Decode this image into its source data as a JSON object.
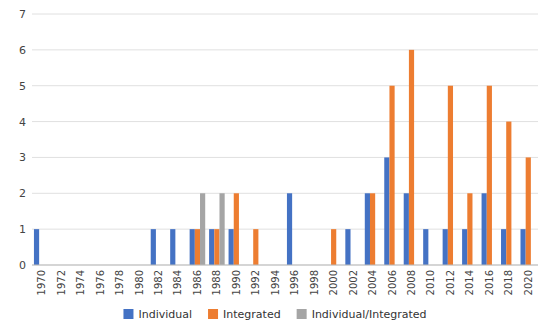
{
  "chart_data": {
    "type": "bar",
    "categories": [
      "1970",
      "1972",
      "1974",
      "1976",
      "1978",
      "1980",
      "1982",
      "1984",
      "1986",
      "1988",
      "1990",
      "1992",
      "1994",
      "1996",
      "1998",
      "2000",
      "2002",
      "2004",
      "2006",
      "2008",
      "2010",
      "2012",
      "2014",
      "2016",
      "2018",
      "2020"
    ],
    "series": [
      {
        "name": "Individual",
        "color": "#4472C4",
        "values": [
          1,
          0,
          0,
          0,
          0,
          0,
          1,
          1,
          1,
          1,
          1,
          0,
          0,
          2,
          0,
          0,
          1,
          2,
          3,
          2,
          1,
          1,
          1,
          2,
          1,
          1
        ]
      },
      {
        "name": "Integrated",
        "color": "#ED7D31",
        "values": [
          0,
          0,
          0,
          0,
          0,
          0,
          0,
          0,
          1,
          1,
          2,
          1,
          0,
          0,
          0,
          1,
          0,
          2,
          5,
          6,
          0,
          5,
          2,
          5,
          4,
          3
        ]
      },
      {
        "name": "Individual/Integrated",
        "color": "#A5A5A5",
        "values": [
          0,
          0,
          0,
          0,
          0,
          0,
          0,
          0,
          2,
          2,
          0,
          0,
          0,
          0,
          0,
          0,
          0,
          0,
          0,
          0,
          0,
          0,
          0,
          0,
          0,
          0
        ]
      }
    ],
    "ylim": [
      0,
      7
    ],
    "yticks": [
      0,
      1,
      2,
      3,
      4,
      5,
      6,
      7
    ],
    "grid": true,
    "legend": "bottom"
  }
}
